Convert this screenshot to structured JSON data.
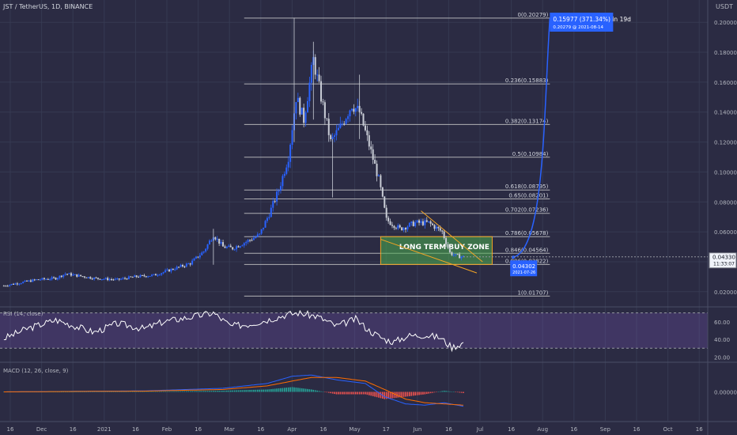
{
  "header": {
    "symbol_label": "JST / TetherUS, 1D, BINANCE",
    "currency": "USDT"
  },
  "colors": {
    "bg": "#2b2b43",
    "grid": "#363a52",
    "text": "#d1d4dc",
    "axis_text": "#b2b5be",
    "up": "#2962ff",
    "down": "#c9cdd6",
    "fib": "#c8c8c8",
    "zone": "#4caf50",
    "zone_border": "#f5a524",
    "trend": "#f5a524",
    "rsi_band": "#7e57c2",
    "macd_line": "#2962ff",
    "signal_line": "#ff6d00",
    "hist_pos": "#26a69a",
    "hist_neg": "#ef5350",
    "projection": "#2962ff"
  },
  "chart_data": [
    {
      "type": "candlestick",
      "title": "JST / TetherUS, 1D, BINANCE",
      "ylabel": "USDT",
      "ylim": [
        0.0125,
        0.2075
      ],
      "y_ticks": [
        "0.20000",
        "0.18000",
        "0.16000",
        "0.14000",
        "0.12000",
        "0.10000",
        "0.08000",
        "0.06000",
        "0.04000",
        "0.02000"
      ],
      "x_ticks": [
        "16",
        "Dec",
        "16",
        "2021",
        "16",
        "Feb",
        "16",
        "Mar",
        "16",
        "Apr",
        "16",
        "May",
        "17",
        "Jun",
        "16",
        "Jul",
        "16",
        "Aug",
        "16",
        "Sep",
        "16",
        "Oct",
        "16"
      ],
      "series": [
        {
          "name": "price",
          "points": [
            [
              "2020-11-03",
              0.024
            ],
            [
              "2020-11-20",
              0.028
            ],
            [
              "2020-11-30",
              0.029
            ],
            [
              "2020-12-05",
              0.032
            ],
            [
              "2020-12-20",
              0.029
            ],
            [
              "2021-01-01",
              0.028
            ],
            [
              "2021-01-10",
              0.03
            ],
            [
              "2021-01-20",
              0.031
            ],
            [
              "2021-02-01",
              0.036
            ],
            [
              "2021-02-08",
              0.039
            ],
            [
              "2021-02-15",
              0.047
            ],
            [
              "2021-02-20",
              0.058
            ],
            [
              "2021-02-25",
              0.05
            ],
            [
              "2021-03-02",
              0.049
            ],
            [
              "2021-03-10",
              0.054
            ],
            [
              "2021-03-16",
              0.058
            ],
            [
              "2021-03-21",
              0.072
            ],
            [
              "2021-03-26",
              0.088
            ],
            [
              "2021-03-31",
              0.11
            ],
            [
              "2021-04-04",
              0.15
            ],
            [
              "2021-04-08",
              0.135
            ],
            [
              "2021-04-13",
              0.175
            ],
            [
              "2021-04-17",
              0.15
            ],
            [
              "2021-04-22",
              0.12
            ],
            [
              "2021-04-27",
              0.13
            ],
            [
              "2021-05-03",
              0.145
            ],
            [
              "2021-05-07",
              0.14
            ],
            [
              "2021-05-12",
              0.118
            ],
            [
              "2021-05-17",
              0.095
            ],
            [
              "2021-05-21",
              0.068
            ],
            [
              "2021-05-28",
              0.062
            ],
            [
              "2021-06-05",
              0.066
            ],
            [
              "2021-06-12",
              0.066
            ],
            [
              "2021-06-19",
              0.06
            ],
            [
              "2021-06-23",
              0.046
            ],
            [
              "2021-06-26",
              0.044
            ],
            [
              "2021-06-30",
              0.0433
            ]
          ]
        }
      ],
      "fib_levels": [
        {
          "label": "0(0.20279)",
          "value": 0.20279
        },
        {
          "label": "0.236(0.15883)",
          "value": 0.15883
        },
        {
          "label": "0.382(0.13174)",
          "value": 0.13174
        },
        {
          "label": "0.5(0.10984)",
          "value": 0.10984
        },
        {
          "label": "0.618(0.08795)",
          "value": 0.08795
        },
        {
          "label": "0.65(0.08201)",
          "value": 0.08201
        },
        {
          "label": "0.702(0.07236)",
          "value": 0.07236
        },
        {
          "label": "0.786(0.05678)",
          "value": 0.05678
        },
        {
          "label": "0.846(0.04564)",
          "value": 0.04564
        },
        {
          "label": "0.886(0.03822)",
          "value": 0.03822
        },
        {
          "label": "1(0.01707)",
          "value": 0.01707
        }
      ],
      "buy_zone": {
        "label": "LONG TERM BUY ZONE",
        "from": "2021-05-18",
        "to": "2021-07-15",
        "low": 0.03822,
        "high": 0.05678
      },
      "projection": {
        "from": [
          "2021-07-26",
          0.04302
        ],
        "to": [
          "2021-08-14",
          0.20279
        ],
        "label_main": "0.15977 (371.34%) in 19d",
        "label_sub": "0.20279 @ 2021-08-14",
        "start_main": "0.04302",
        "start_sub": "2021-07-26"
      },
      "current_price": {
        "value": "0.04330",
        "countdown": "11:33:07"
      }
    },
    {
      "type": "line",
      "title": "RSI (14, close)",
      "ylim": [
        15,
        75
      ],
      "y_ticks": [
        "60.00",
        "40.00",
        "20.00"
      ],
      "band": [
        30,
        70
      ],
      "series": [
        {
          "name": "RSI",
          "points": [
            [
              "2020-11-03",
              41
            ],
            [
              "2020-11-15",
              52
            ],
            [
              "2020-11-30",
              62
            ],
            [
              "2020-12-10",
              55
            ],
            [
              "2020-12-20",
              48
            ],
            [
              "2021-01-01",
              58
            ],
            [
              "2021-01-15",
              52
            ],
            [
              "2021-01-25",
              60
            ],
            [
              "2021-02-10",
              66
            ],
            [
              "2021-02-20",
              70
            ],
            [
              "2021-03-01",
              55
            ],
            [
              "2021-03-10",
              57
            ],
            [
              "2021-03-20",
              62
            ],
            [
              "2021-03-30",
              68
            ],
            [
              "2021-04-05",
              70
            ],
            [
              "2021-04-15",
              66
            ],
            [
              "2021-04-25",
              55
            ],
            [
              "2021-05-05",
              63
            ],
            [
              "2021-05-12",
              50
            ],
            [
              "2021-05-20",
              40
            ],
            [
              "2021-05-25",
              37
            ],
            [
              "2021-06-01",
              44
            ],
            [
              "2021-06-10",
              45
            ],
            [
              "2021-06-18",
              42
            ],
            [
              "2021-06-24",
              31
            ],
            [
              "2021-06-30",
              36
            ]
          ]
        }
      ]
    },
    {
      "type": "line",
      "title": "MACD (12, 26, close, 9)",
      "ylim": [
        -0.024,
        0.022
      ],
      "y_ticks": [
        "0.00000"
      ],
      "series": [
        {
          "name": "MACD",
          "points": [
            [
              "2020-11-03",
              0.0
            ],
            [
              "2020-12-15",
              0.0005
            ],
            [
              "2021-01-15",
              0.0008
            ],
            [
              "2021-02-25",
              0.003
            ],
            [
              "2021-03-20",
              0.007
            ],
            [
              "2021-04-02",
              0.013
            ],
            [
              "2021-04-12",
              0.014
            ],
            [
              "2021-04-25",
              0.01
            ],
            [
              "2021-05-10",
              0.007
            ],
            [
              "2021-05-20",
              -0.004
            ],
            [
              "2021-05-31",
              -0.01
            ],
            [
              "2021-06-10",
              -0.011
            ],
            [
              "2021-06-20",
              -0.009
            ],
            [
              "2021-06-30",
              -0.012
            ]
          ]
        },
        {
          "name": "Signal",
          "points": [
            [
              "2020-11-03",
              0.0
            ],
            [
              "2020-12-15",
              0.0004
            ],
            [
              "2021-01-15",
              0.0006
            ],
            [
              "2021-02-25",
              0.002
            ],
            [
              "2021-03-20",
              0.005
            ],
            [
              "2021-04-02",
              0.009
            ],
            [
              "2021-04-12",
              0.012
            ],
            [
              "2021-04-25",
              0.012
            ],
            [
              "2021-05-10",
              0.009
            ],
            [
              "2021-05-20",
              0.002
            ],
            [
              "2021-05-31",
              -0.006
            ],
            [
              "2021-06-10",
              -0.009
            ],
            [
              "2021-06-20",
              -0.01
            ],
            [
              "2021-06-30",
              -0.011
            ]
          ]
        }
      ]
    }
  ]
}
